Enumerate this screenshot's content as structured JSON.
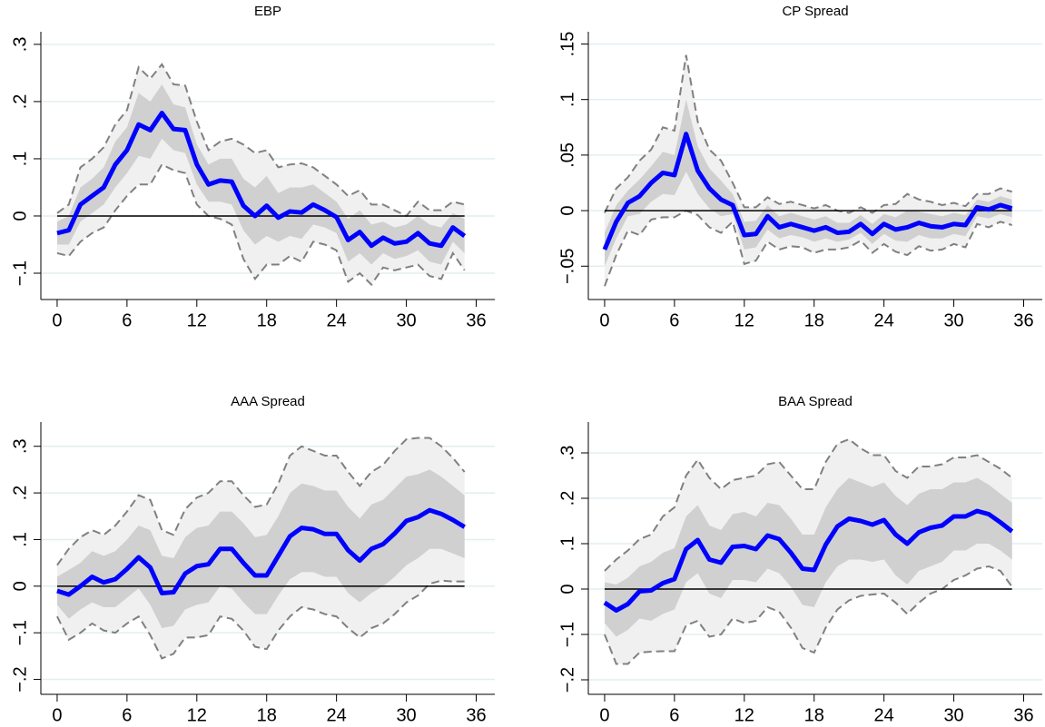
{
  "chart_data": [
    {
      "type": "band-line",
      "title": "EBP",
      "x": [
        0,
        1,
        2,
        3,
        4,
        5,
        6,
        7,
        8,
        9,
        10,
        11,
        12,
        13,
        14,
        15,
        16,
        17,
        18,
        19,
        20,
        21,
        22,
        23,
        24,
        25,
        26,
        27,
        28,
        29,
        30,
        31,
        32,
        33,
        34,
        35
      ],
      "xlim": [
        -1.4,
        37.6
      ],
      "xticks": [
        0,
        6,
        12,
        18,
        24,
        30,
        36
      ],
      "ylim": [
        -0.146,
        0.322
      ],
      "yticks": [
        {
          "value": -0.1,
          "label": "−.1"
        },
        0,
        {
          "value": 0.1,
          "label": ".1"
        },
        {
          "value": 0.2,
          "label": ".2"
        },
        {
          "value": 0.3,
          "label": ".3"
        }
      ],
      "grid": true,
      "hline": 0,
      "bands": [
        {
          "color": "#f0f0f0",
          "edge_color": "#808080",
          "dashed": true,
          "lower": [
            -0.065,
            -0.07,
            -0.045,
            -0.03,
            -0.02,
            0.01,
            0.035,
            0.055,
            0.055,
            0.09,
            0.08,
            0.075,
            0.02,
            0.0,
            -0.005,
            -0.015,
            -0.075,
            -0.11,
            -0.085,
            -0.085,
            -0.07,
            -0.08,
            -0.045,
            -0.05,
            -0.06,
            -0.115,
            -0.1,
            -0.12,
            -0.09,
            -0.095,
            -0.09,
            -0.085,
            -0.105,
            -0.11,
            -0.065,
            -0.095
          ],
          "upper": [
            0.005,
            0.02,
            0.085,
            0.1,
            0.12,
            0.16,
            0.185,
            0.26,
            0.24,
            0.265,
            0.23,
            0.228,
            0.165,
            0.115,
            0.13,
            0.135,
            0.125,
            0.11,
            0.115,
            0.085,
            0.09,
            0.092,
            0.085,
            0.07,
            0.055,
            0.035,
            0.045,
            0.02,
            0.02,
            0.01,
            0.0,
            0.025,
            0.01,
            0.01,
            0.025,
            0.02
          ]
        },
        {
          "color": "#d0d0d0",
          "dashed": false,
          "lower": [
            -0.05,
            -0.05,
            -0.01,
            0.005,
            0.02,
            0.05,
            0.075,
            0.105,
            0.1,
            0.135,
            0.115,
            0.11,
            0.055,
            0.025,
            0.025,
            0.02,
            -0.025,
            -0.05,
            -0.035,
            -0.045,
            -0.035,
            -0.04,
            -0.015,
            -0.02,
            -0.03,
            -0.08,
            -0.065,
            -0.085,
            -0.065,
            -0.075,
            -0.07,
            -0.06,
            -0.08,
            -0.085,
            -0.045,
            -0.065
          ],
          "upper": [
            -0.01,
            0.0,
            0.05,
            0.065,
            0.085,
            0.13,
            0.155,
            0.215,
            0.2,
            0.23,
            0.195,
            0.19,
            0.125,
            0.09,
            0.1,
            0.1,
            0.065,
            0.05,
            0.07,
            0.04,
            0.05,
            0.05,
            0.055,
            0.04,
            0.025,
            -0.005,
            0.01,
            -0.015,
            -0.01,
            -0.02,
            -0.015,
            0.0,
            -0.015,
            -0.02,
            0.005,
            -0.005
          ]
        }
      ],
      "series": [
        {
          "color": "#0000ff",
          "values": [
            -0.03,
            -0.025,
            0.02,
            0.035,
            0.05,
            0.09,
            0.115,
            0.16,
            0.15,
            0.18,
            0.152,
            0.15,
            0.09,
            0.055,
            0.062,
            0.06,
            0.018,
            0.0,
            0.018,
            -0.003,
            0.008,
            0.006,
            0.02,
            0.01,
            -0.002,
            -0.042,
            -0.028,
            -0.052,
            -0.038,
            -0.048,
            -0.045,
            -0.03,
            -0.048,
            -0.052,
            -0.02,
            -0.035
          ]
        }
      ]
    },
    {
      "type": "band-line",
      "title": "CP Spread",
      "x": [
        0,
        1,
        2,
        3,
        4,
        5,
        6,
        7,
        8,
        9,
        10,
        11,
        12,
        13,
        14,
        15,
        16,
        17,
        18,
        19,
        20,
        21,
        22,
        23,
        24,
        25,
        26,
        27,
        28,
        29,
        30,
        31,
        32,
        33,
        34,
        35
      ],
      "xlim": [
        -1.4,
        37.6
      ],
      "xticks": [
        0,
        6,
        12,
        18,
        24,
        30,
        36
      ],
      "ylim": [
        -0.08,
        0.161
      ],
      "yticks": [
        {
          "value": -0.05,
          "label": "−.05"
        },
        0,
        {
          "value": 0.05,
          "label": ".05"
        },
        {
          "value": 0.1,
          "label": ".1"
        },
        {
          "value": 0.15,
          "label": ".15"
        }
      ],
      "grid": true,
      "hline": 0,
      "bands": [
        {
          "color": "#f0f0f0",
          "edge_color": "#808080",
          "dashed": true,
          "lower": [
            -0.068,
            -0.04,
            -0.018,
            -0.022,
            -0.008,
            -0.006,
            -0.006,
            0.0,
            -0.004,
            -0.015,
            -0.02,
            -0.01,
            -0.048,
            -0.045,
            -0.028,
            -0.035,
            -0.032,
            -0.033,
            -0.038,
            -0.035,
            -0.035,
            -0.033,
            -0.027,
            -0.038,
            -0.03,
            -0.037,
            -0.04,
            -0.032,
            -0.036,
            -0.035,
            -0.03,
            -0.033,
            -0.012,
            -0.015,
            -0.01,
            -0.013
          ],
          "upper": [
            -0.002,
            0.02,
            0.03,
            0.045,
            0.055,
            0.075,
            0.072,
            0.14,
            0.08,
            0.055,
            0.045,
            0.025,
            0.003,
            0.003,
            0.012,
            0.006,
            0.008,
            0.005,
            0.002,
            0.005,
            0.0,
            -0.002,
            0.003,
            -0.002,
            0.005,
            0.006,
            0.015,
            0.01,
            0.008,
            0.005,
            0.007,
            0.004,
            0.015,
            0.015,
            0.02,
            0.017
          ]
        },
        {
          "color": "#d0d0d0",
          "dashed": false,
          "lower": [
            -0.05,
            -0.025,
            -0.005,
            -0.003,
            0.008,
            0.015,
            0.014,
            0.035,
            0.015,
            0.002,
            -0.005,
            -0.003,
            -0.035,
            -0.033,
            -0.017,
            -0.025,
            -0.022,
            -0.024,
            -0.028,
            -0.025,
            -0.028,
            -0.026,
            -0.02,
            -0.03,
            -0.021,
            -0.027,
            -0.028,
            -0.022,
            -0.025,
            -0.025,
            -0.021,
            -0.023,
            -0.005,
            -0.007,
            -0.003,
            -0.006
          ],
          "upper": [
            -0.02,
            0.005,
            0.018,
            0.028,
            0.04,
            0.053,
            0.05,
            0.1,
            0.058,
            0.038,
            0.027,
            0.015,
            -0.01,
            -0.009,
            0.005,
            -0.005,
            -0.002,
            -0.005,
            -0.008,
            -0.005,
            -0.011,
            -0.011,
            -0.004,
            -0.012,
            -0.003,
            -0.006,
            0.0,
            -0.001,
            -0.003,
            -0.005,
            -0.002,
            -0.004,
            0.01,
            0.008,
            0.013,
            0.01
          ]
        }
      ],
      "series": [
        {
          "color": "#0000ff",
          "values": [
            -0.035,
            -0.01,
            0.007,
            0.013,
            0.025,
            0.034,
            0.032,
            0.069,
            0.036,
            0.02,
            0.01,
            0.005,
            -0.022,
            -0.021,
            -0.005,
            -0.015,
            -0.012,
            -0.015,
            -0.018,
            -0.015,
            -0.02,
            -0.019,
            -0.012,
            -0.021,
            -0.012,
            -0.017,
            -0.015,
            -0.011,
            -0.014,
            -0.015,
            -0.012,
            -0.013,
            0.003,
            0.001,
            0.005,
            0.002
          ]
        }
      ]
    },
    {
      "type": "band-line",
      "title": "AAA Spread",
      "x": [
        0,
        1,
        2,
        3,
        4,
        5,
        6,
        7,
        8,
        9,
        10,
        11,
        12,
        13,
        14,
        15,
        16,
        17,
        18,
        19,
        20,
        21,
        22,
        23,
        24,
        25,
        26,
        27,
        28,
        29,
        30,
        31,
        32,
        33,
        34,
        35
      ],
      "xlim": [
        -1.4,
        37.6
      ],
      "xticks": [
        0,
        6,
        12,
        18,
        24,
        30,
        36
      ],
      "ylim": [
        -0.232,
        0.352
      ],
      "yticks": [
        {
          "value": -0.2,
          "label": "−.2"
        },
        {
          "value": -0.1,
          "label": "−.1"
        },
        0,
        {
          "value": 0.1,
          "label": ".1"
        },
        {
          "value": 0.2,
          "label": ".2"
        },
        {
          "value": 0.3,
          "label": ".3"
        }
      ],
      "grid": true,
      "hline": 0,
      "bands": [
        {
          "color": "#f0f0f0",
          "edge_color": "#808080",
          "dashed": true,
          "lower": [
            -0.065,
            -0.115,
            -0.1,
            -0.08,
            -0.095,
            -0.1,
            -0.08,
            -0.065,
            -0.105,
            -0.155,
            -0.145,
            -0.11,
            -0.11,
            -0.105,
            -0.065,
            -0.07,
            -0.095,
            -0.13,
            -0.135,
            -0.095,
            -0.065,
            -0.045,
            -0.05,
            -0.06,
            -0.065,
            -0.09,
            -0.11,
            -0.09,
            -0.08,
            -0.06,
            -0.035,
            -0.02,
            0.005,
            0.012,
            0.01,
            0.01
          ],
          "upper": [
            0.045,
            0.08,
            0.105,
            0.12,
            0.11,
            0.13,
            0.16,
            0.195,
            0.185,
            0.12,
            0.11,
            0.165,
            0.19,
            0.2,
            0.225,
            0.225,
            0.195,
            0.17,
            0.175,
            0.22,
            0.28,
            0.3,
            0.29,
            0.28,
            0.28,
            0.245,
            0.215,
            0.245,
            0.26,
            0.29,
            0.315,
            0.318,
            0.318,
            0.3,
            0.275,
            0.245
          ]
        },
        {
          "color": "#d0d0d0",
          "dashed": false,
          "lower": [
            -0.04,
            -0.07,
            -0.05,
            -0.035,
            -0.045,
            -0.045,
            -0.025,
            -0.005,
            -0.04,
            -0.09,
            -0.085,
            -0.05,
            -0.04,
            -0.035,
            0.0,
            -0.005,
            -0.035,
            -0.06,
            -0.06,
            -0.02,
            0.015,
            0.03,
            0.03,
            0.02,
            0.02,
            -0.015,
            -0.035,
            -0.015,
            0.0,
            0.02,
            0.045,
            0.06,
            0.08,
            0.08,
            0.07,
            0.06
          ],
          "upper": [
            0.02,
            0.035,
            0.05,
            0.075,
            0.065,
            0.075,
            0.1,
            0.13,
            0.12,
            0.065,
            0.06,
            0.105,
            0.125,
            0.13,
            0.16,
            0.16,
            0.135,
            0.105,
            0.11,
            0.15,
            0.2,
            0.22,
            0.215,
            0.205,
            0.205,
            0.17,
            0.145,
            0.175,
            0.185,
            0.21,
            0.235,
            0.24,
            0.25,
            0.235,
            0.215,
            0.195
          ]
        }
      ],
      "series": [
        {
          "color": "#0000ff",
          "values": [
            -0.01,
            -0.018,
            0.0,
            0.02,
            0.008,
            0.015,
            0.037,
            0.062,
            0.04,
            -0.015,
            -0.013,
            0.027,
            0.043,
            0.047,
            0.08,
            0.08,
            0.05,
            0.023,
            0.023,
            0.065,
            0.107,
            0.125,
            0.122,
            0.112,
            0.112,
            0.077,
            0.055,
            0.08,
            0.09,
            0.113,
            0.14,
            0.148,
            0.163,
            0.155,
            0.142,
            0.127
          ]
        }
      ]
    },
    {
      "type": "band-line",
      "title": "BAA Spread",
      "x": [
        0,
        1,
        2,
        3,
        4,
        5,
        6,
        7,
        8,
        9,
        10,
        11,
        12,
        13,
        14,
        15,
        16,
        17,
        18,
        19,
        20,
        21,
        22,
        23,
        24,
        25,
        26,
        27,
        28,
        29,
        30,
        31,
        32,
        33,
        34,
        35
      ],
      "xlim": [
        -1.4,
        37.6
      ],
      "xticks": [
        0,
        6,
        12,
        18,
        24,
        30,
        36
      ],
      "ylim": [
        -0.232,
        0.368
      ],
      "yticks": [
        {
          "value": -0.2,
          "label": "−.2"
        },
        {
          "value": -0.1,
          "label": "−.1"
        },
        0,
        {
          "value": 0.1,
          "label": ".1"
        },
        {
          "value": 0.2,
          "label": ".2"
        },
        {
          "value": 0.3,
          "label": ".3"
        }
      ],
      "grid": true,
      "hline": 0,
      "bands": [
        {
          "color": "#f0f0f0",
          "edge_color": "#808080",
          "dashed": true,
          "lower": [
            -0.1,
            -0.165,
            -0.165,
            -0.14,
            -0.138,
            -0.137,
            -0.137,
            -0.08,
            -0.07,
            -0.105,
            -0.1,
            -0.065,
            -0.075,
            -0.07,
            -0.04,
            -0.05,
            -0.085,
            -0.13,
            -0.14,
            -0.085,
            -0.045,
            -0.025,
            -0.015,
            -0.012,
            -0.01,
            -0.03,
            -0.055,
            -0.03,
            -0.01,
            0.0,
            0.02,
            0.03,
            0.045,
            0.05,
            0.04,
            0.005
          ],
          "upper": [
            0.04,
            0.065,
            0.085,
            0.11,
            0.12,
            0.16,
            0.18,
            0.25,
            0.285,
            0.245,
            0.22,
            0.24,
            0.245,
            0.25,
            0.275,
            0.28,
            0.25,
            0.22,
            0.22,
            0.28,
            0.32,
            0.33,
            0.31,
            0.295,
            0.295,
            0.26,
            0.245,
            0.27,
            0.27,
            0.275,
            0.29,
            0.29,
            0.295,
            0.28,
            0.265,
            0.245
          ]
        },
        {
          "color": "#d0d0d0",
          "dashed": false,
          "lower": [
            -0.075,
            -0.105,
            -0.09,
            -0.065,
            -0.07,
            -0.055,
            -0.045,
            0.015,
            0.035,
            -0.01,
            -0.02,
            0.02,
            0.02,
            0.015,
            0.045,
            0.035,
            0.005,
            -0.035,
            -0.04,
            0.015,
            0.05,
            0.065,
            0.065,
            0.06,
            0.065,
            0.03,
            0.01,
            0.04,
            0.05,
            0.06,
            0.085,
            0.085,
            0.1,
            0.1,
            0.085,
            0.065
          ],
          "upper": [
            0.015,
            0.01,
            0.025,
            0.05,
            0.06,
            0.08,
            0.09,
            0.16,
            0.185,
            0.14,
            0.13,
            0.165,
            0.17,
            0.16,
            0.19,
            0.185,
            0.155,
            0.12,
            0.12,
            0.18,
            0.22,
            0.245,
            0.235,
            0.225,
            0.235,
            0.205,
            0.185,
            0.21,
            0.22,
            0.22,
            0.235,
            0.235,
            0.245,
            0.23,
            0.21,
            0.19
          ]
        }
      ],
      "series": [
        {
          "color": "#0000ff",
          "values": [
            -0.03,
            -0.047,
            -0.033,
            -0.005,
            -0.003,
            0.013,
            0.022,
            0.088,
            0.108,
            0.065,
            0.058,
            0.093,
            0.095,
            0.088,
            0.118,
            0.11,
            0.08,
            0.045,
            0.042,
            0.098,
            0.138,
            0.155,
            0.15,
            0.142,
            0.152,
            0.12,
            0.1,
            0.125,
            0.135,
            0.14,
            0.16,
            0.16,
            0.172,
            0.165,
            0.147,
            0.127
          ]
        }
      ]
    }
  ]
}
